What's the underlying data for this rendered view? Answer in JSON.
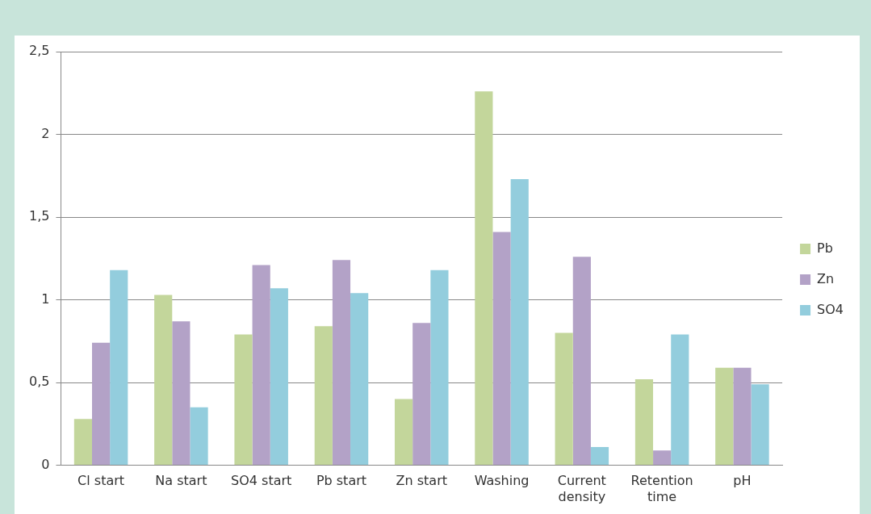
{
  "chart_data": {
    "type": "bar",
    "categories": [
      "Cl start",
      "Na start",
      "SO4 start",
      "Pb start",
      "Zn start",
      "Washing",
      "Current density",
      "Retention time",
      "pH"
    ],
    "series": [
      {
        "name": "Pb",
        "color": "#c3d69b",
        "values": [
          0.28,
          1.03,
          0.79,
          0.84,
          0.4,
          2.26,
          0.8,
          0.52,
          0.59
        ]
      },
      {
        "name": "Zn",
        "color": "#b3a2c7",
        "values": [
          0.74,
          0.87,
          1.21,
          1.24,
          0.86,
          1.41,
          1.26,
          0.09,
          0.59
        ]
      },
      {
        "name": "SO4",
        "color": "#93cddd",
        "values": [
          1.18,
          0.35,
          1.07,
          1.04,
          1.18,
          1.73,
          0.11,
          0.79,
          0.49
        ]
      }
    ],
    "ylim": [
      0,
      2.5
    ],
    "yticks": [
      {
        "value": 0,
        "label": "0"
      },
      {
        "value": 0.5,
        "label": "0,5"
      },
      {
        "value": 1,
        "label": "1"
      },
      {
        "value": 1.5,
        "label": "1,5"
      },
      {
        "value": 2,
        "label": "2"
      },
      {
        "value": 2.5,
        "label": "2,5"
      }
    ],
    "grid": "y",
    "legend": "right"
  }
}
